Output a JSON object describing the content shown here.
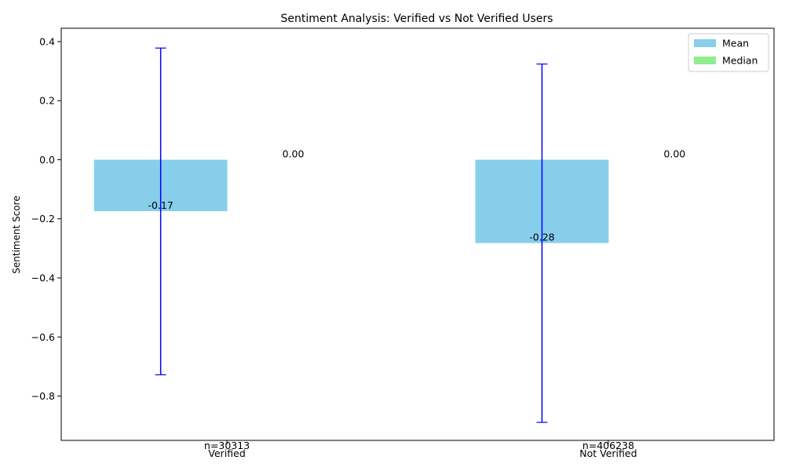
{
  "chart_data": {
    "type": "bar",
    "title": "Sentiment Analysis: Verified vs Not Verified Users",
    "ylabel": "Sentiment Score",
    "xlabel": "",
    "categories": [
      "Verified",
      "Not Verified"
    ],
    "counts": [
      "n=30313",
      "n=406238"
    ],
    "ylim": [
      -0.95,
      0.445
    ],
    "yticks": [
      0.4,
      0.2,
      0.0,
      -0.2,
      -0.4,
      -0.6,
      -0.8
    ],
    "ytick_labels": [
      "0.4",
      "0.2",
      "0.0",
      "−0.2",
      "−0.4",
      "−0.6",
      "−0.8"
    ],
    "series": [
      {
        "name": "Mean",
        "color": "#87ceeb",
        "values": [
          -0.174,
          -0.282
        ],
        "labels": [
          "-0.17",
          "-0.28"
        ],
        "error_bars": [
          [
            -0.728,
            0.378
          ],
          [
            -0.889,
            0.324
          ]
        ],
        "error_color": "#0000ff"
      },
      {
        "name": "Median",
        "color": "#90ee90",
        "values": [
          0.0,
          0.0
        ],
        "labels": [
          "0.00",
          "0.00"
        ]
      }
    ],
    "grid": false,
    "legend_position": "top-right"
  }
}
